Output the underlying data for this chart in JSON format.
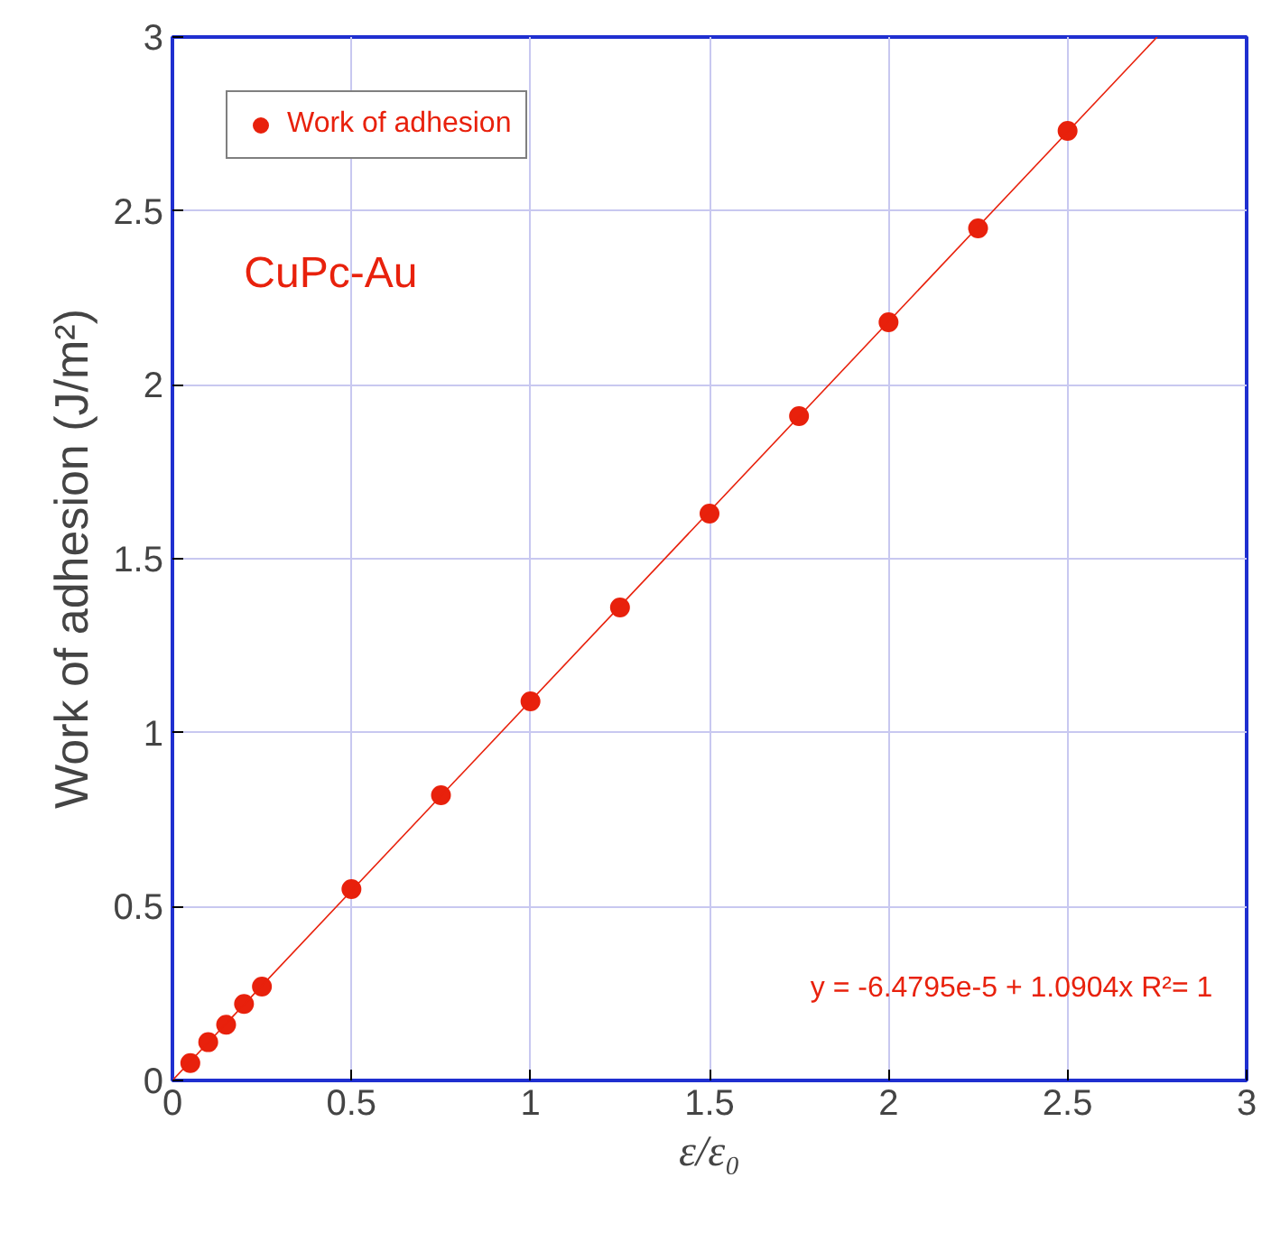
{
  "chart_data": {
    "type": "scatter",
    "xlabel": "ε/ε₀",
    "ylabel": "Work of adhesion (J/m²)",
    "x": [
      0.05,
      0.1,
      0.15,
      0.2,
      0.25,
      0.5,
      0.75,
      1,
      1.25,
      1.5,
      1.75,
      2,
      2.25,
      2.5
    ],
    "series": [
      {
        "name": "Work of adhesion",
        "color": "#e8210c",
        "values": [
          0.05,
          0.11,
          0.16,
          0.22,
          0.27,
          0.55,
          0.82,
          1.09,
          1.36,
          1.63,
          1.91,
          2.18,
          2.45,
          2.73
        ]
      },
      {
        "type": "line",
        "marker": "none",
        "color": "#e8210c",
        "x": [
          0,
          2.75
        ],
        "values": [
          0,
          3
        ]
      }
    ],
    "annotations": [
      "CuPc-Au",
      "y = -6.4795e-5 + 1.0904x   R²= 1"
    ],
    "xlim": [
      0,
      3
    ],
    "ylim": [
      0,
      3
    ],
    "xticks": [
      0,
      0.5,
      1,
      1.5,
      2,
      2.5,
      3
    ],
    "yticks": [
      0,
      0.5,
      1,
      1.5,
      2,
      2.5,
      3
    ],
    "grid": true,
    "legend": "top left",
    "marker": "circle",
    "line_style": "solid"
  }
}
